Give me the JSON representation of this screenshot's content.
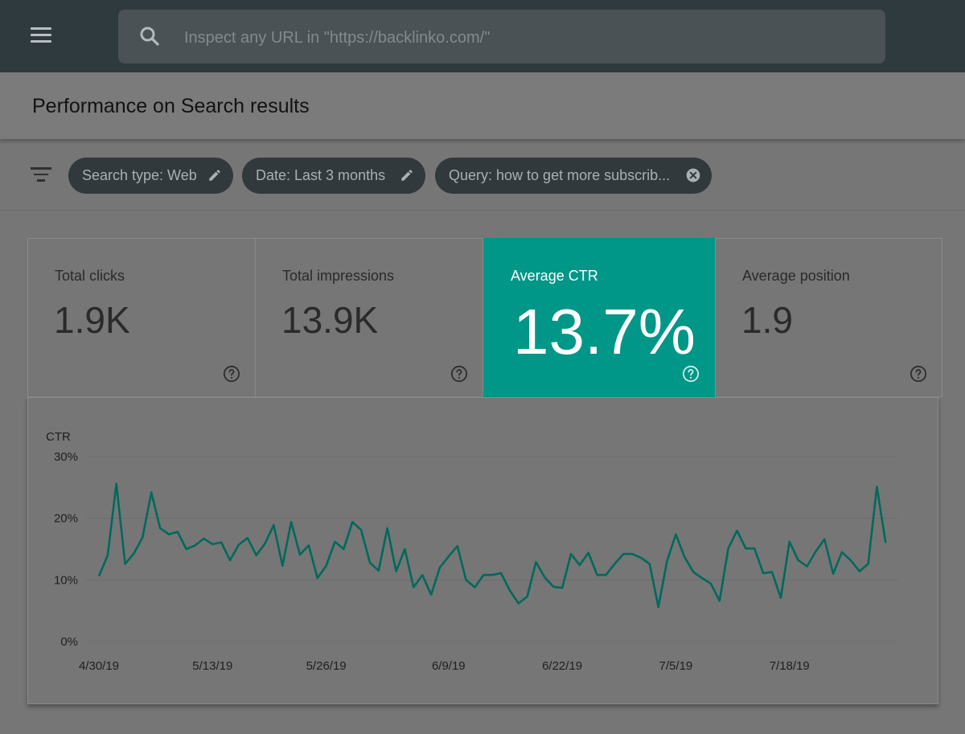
{
  "topbar": {
    "menu_icon": "hamburger-menu-icon",
    "search": {
      "icon": "search-icon",
      "placeholder": "Inspect any URL in \"https://backlinko.com/\""
    }
  },
  "page": {
    "title": "Performance on Search results"
  },
  "filters": {
    "icon": "filter-icon",
    "chips": [
      {
        "label": "Search type: Web",
        "icon": "pencil-icon"
      },
      {
        "label": "Date: Last 3 months",
        "icon": "pencil-icon"
      },
      {
        "label": "Query: how to get more subscrib...",
        "icon": "close-circle-icon"
      }
    ]
  },
  "metrics": [
    {
      "label": "Total clicks",
      "value": "1.9K",
      "active": false
    },
    {
      "label": "Total impressions",
      "value": "13.9K",
      "active": false
    },
    {
      "label": "Average CTR",
      "value": "13.7%",
      "active": true
    },
    {
      "label": "Average position",
      "value": "1.9",
      "active": false
    }
  ],
  "colors": {
    "topbar": "#2f3a3f",
    "active_card": "#009688",
    "line": "#00695c"
  },
  "chart_data": {
    "type": "line",
    "ylabel": "CTR",
    "ylim": [
      0,
      30
    ],
    "yticks": [
      "0%",
      "10%",
      "20%",
      "30%"
    ],
    "xticks": [
      "4/30/19",
      "5/13/19",
      "5/26/19",
      "6/9/19",
      "6/22/19",
      "7/5/19",
      "7/18/19"
    ],
    "xtick_days": [
      0,
      13,
      26,
      40,
      53,
      66,
      79
    ],
    "series": [
      {
        "values": [
          10.6,
          14,
          25.6,
          12.6,
          14.3,
          16.9,
          24.2,
          18.4,
          17.4,
          17.8,
          15,
          15.6,
          16.7,
          15.8,
          16.1,
          13.2,
          15.7,
          16.8,
          14,
          15.9,
          18.9,
          12.3,
          19.4,
          14.1,
          15.6,
          10.3,
          12.3,
          16.2,
          15,
          19.4,
          18.1,
          12.8,
          11.5,
          18.4,
          11.4,
          15,
          8.8,
          10.8,
          7.6,
          12,
          13.8,
          15.5,
          10,
          8.8,
          10.8,
          10.8,
          11.1,
          8.3,
          6.2,
          7.3,
          12.9,
          10.4,
          8.9,
          8.7,
          14.2,
          12.4,
          14.4,
          10.8,
          10.8,
          12.6,
          14.2,
          14.2,
          13.6,
          12.6,
          5.6,
          13.1,
          17.4,
          13.7,
          11.3,
          10.3,
          9.4,
          6.6,
          15.1,
          18,
          15.1,
          15.1,
          11.1,
          11.3,
          7.1,
          16.2,
          13.2,
          12.2,
          14.6,
          16.6,
          11,
          14.5,
          13.2,
          11.4,
          12.6,
          25.1,
          16
        ]
      }
    ]
  }
}
